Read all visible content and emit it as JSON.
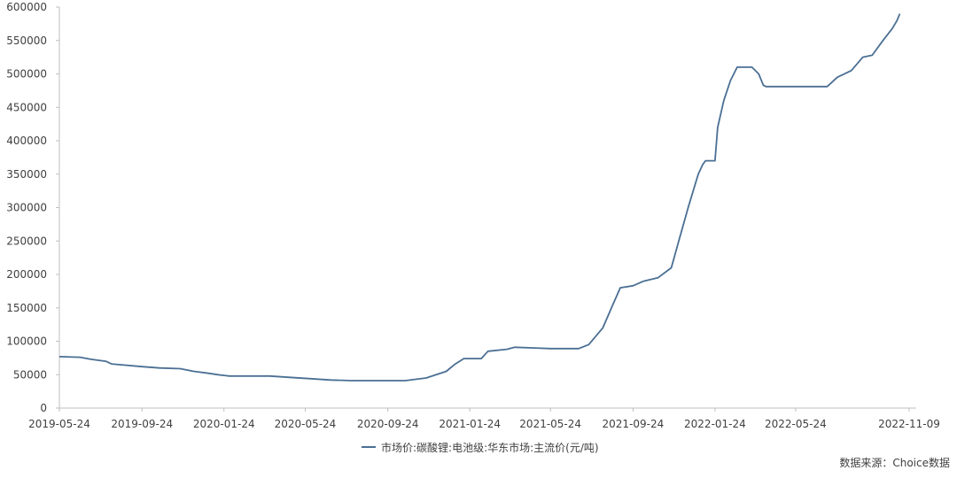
{
  "chart_data": {
    "type": "line",
    "title": "",
    "xlabel": "",
    "ylabel": "",
    "ylim": [
      0,
      600000
    ],
    "yticks": [
      0,
      50000,
      100000,
      150000,
      200000,
      250000,
      300000,
      350000,
      400000,
      450000,
      500000,
      550000,
      600000
    ],
    "xticks": [
      "2019-05-24",
      "2019-09-24",
      "2020-01-24",
      "2020-05-24",
      "2020-09-24",
      "2021-01-24",
      "2021-05-24",
      "2021-09-24",
      "2022-01-24",
      "2022-05-24",
      "2022-11-09"
    ],
    "xlim": [
      "2019-05-24",
      "2022-11-09"
    ],
    "grid": false,
    "legend_position": "bottom",
    "series": [
      {
        "name": "市场价:碳酸锂:电池级:华东市场:主流价(元/吨)",
        "color": "#4a6f93",
        "points": [
          [
            "2019-05-24",
            77000
          ],
          [
            "2019-06-24",
            76000
          ],
          [
            "2019-07-10",
            73000
          ],
          [
            "2019-08-01",
            70000
          ],
          [
            "2019-08-10",
            66000
          ],
          [
            "2019-09-24",
            62000
          ],
          [
            "2019-10-20",
            60000
          ],
          [
            "2019-11-20",
            59000
          ],
          [
            "2019-12-10",
            55000
          ],
          [
            "2020-01-01",
            52000
          ],
          [
            "2020-01-15",
            50000
          ],
          [
            "2020-02-01",
            48000
          ],
          [
            "2020-04-01",
            48000
          ],
          [
            "2020-05-01",
            46000
          ],
          [
            "2020-06-01",
            44000
          ],
          [
            "2020-07-01",
            42000
          ],
          [
            "2020-08-01",
            41000
          ],
          [
            "2020-10-20",
            41000
          ],
          [
            "2020-11-20",
            45000
          ],
          [
            "2020-12-20",
            55000
          ],
          [
            "2021-01-01",
            65000
          ],
          [
            "2021-01-15",
            74000
          ],
          [
            "2021-02-10",
            74000
          ],
          [
            "2021-02-20",
            85000
          ],
          [
            "2021-03-20",
            88000
          ],
          [
            "2021-04-01",
            91000
          ],
          [
            "2021-05-01",
            90000
          ],
          [
            "2021-05-24",
            89000
          ],
          [
            "2021-07-05",
            89000
          ],
          [
            "2021-07-20",
            95000
          ],
          [
            "2021-08-10",
            120000
          ],
          [
            "2021-08-25",
            155000
          ],
          [
            "2021-09-05",
            180000
          ],
          [
            "2021-09-24",
            183000
          ],
          [
            "2021-10-10",
            190000
          ],
          [
            "2021-10-31",
            195000
          ],
          [
            "2021-11-20",
            210000
          ],
          [
            "2021-12-01",
            250000
          ],
          [
            "2021-12-15",
            300000
          ],
          [
            "2021-12-30",
            350000
          ],
          [
            "2022-01-06",
            365000
          ],
          [
            "2022-01-10",
            370000
          ],
          [
            "2022-01-24",
            370000
          ],
          [
            "2022-01-28",
            420000
          ],
          [
            "2022-02-06",
            460000
          ],
          [
            "2022-02-16",
            490000
          ],
          [
            "2022-02-26",
            510000
          ],
          [
            "2022-03-20",
            510000
          ],
          [
            "2022-03-30",
            500000
          ],
          [
            "2022-04-06",
            483000
          ],
          [
            "2022-04-10",
            481000
          ],
          [
            "2022-07-10",
            481000
          ],
          [
            "2022-07-25",
            495000
          ],
          [
            "2022-08-15",
            505000
          ],
          [
            "2022-09-01",
            525000
          ],
          [
            "2022-09-15",
            528000
          ],
          [
            "2022-10-01",
            550000
          ],
          [
            "2022-10-15",
            568000
          ],
          [
            "2022-10-22",
            580000
          ],
          [
            "2022-10-26",
            590000
          ]
        ]
      }
    ],
    "source_note": "数据来源：Choice数据"
  }
}
